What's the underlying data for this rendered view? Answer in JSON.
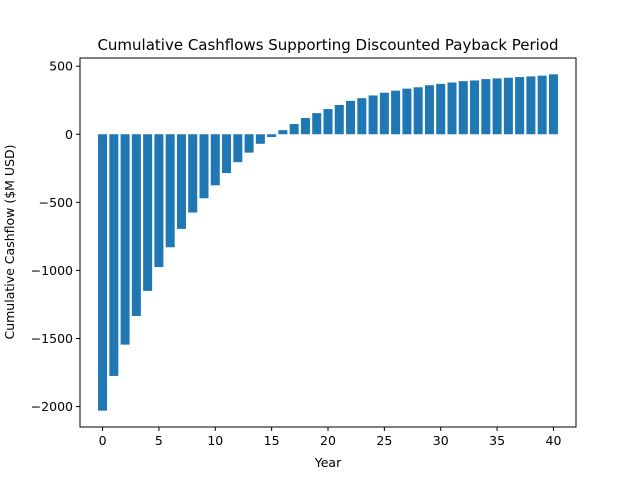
{
  "chart_data": {
    "type": "bar",
    "title": "Cumulative Cashflows Supporting Discounted Payback Period",
    "xlabel": "Year",
    "ylabel": "Cumulative Cashflow ($M USD)",
    "bar_color": "#1f77b4",
    "xlim": [
      -2,
      42
    ],
    "ylim": [
      -2150,
      560
    ],
    "xticks": [
      0,
      5,
      10,
      15,
      20,
      25,
      30,
      35,
      40
    ],
    "yticks": [
      -2000,
      -1500,
      -1000,
      -500,
      0,
      500
    ],
    "ytick_labels": [
      "−2000",
      "−1500",
      "−1000",
      "−500",
      "0",
      "500"
    ],
    "grid": false,
    "legend": "none",
    "x": [
      0,
      1,
      2,
      3,
      4,
      5,
      6,
      7,
      8,
      9,
      10,
      11,
      12,
      13,
      14,
      15,
      16,
      17,
      18,
      19,
      20,
      21,
      22,
      23,
      24,
      25,
      26,
      27,
      28,
      29,
      30,
      31,
      32,
      33,
      34,
      35,
      36,
      37,
      38,
      39,
      40
    ],
    "values": [
      -2030,
      -1775,
      -1545,
      -1335,
      -1150,
      -975,
      -830,
      -695,
      -575,
      -470,
      -375,
      -285,
      -205,
      -135,
      -70,
      -20,
      30,
      75,
      120,
      155,
      185,
      215,
      245,
      265,
      285,
      305,
      320,
      335,
      345,
      360,
      370,
      380,
      390,
      395,
      405,
      410,
      415,
      420,
      425,
      430,
      440
    ]
  }
}
